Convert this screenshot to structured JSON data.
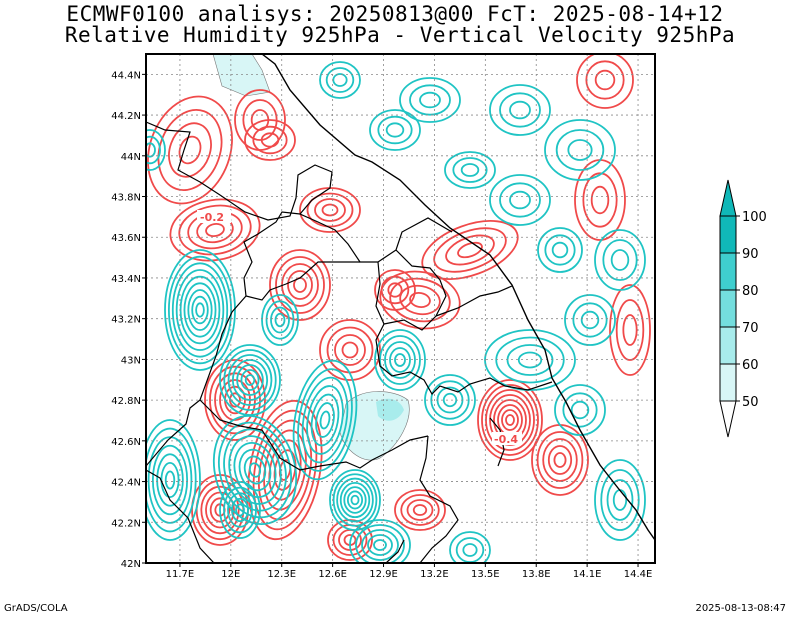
{
  "header": {
    "line1": "ECMWF0100 analisys: 20250813@00 FcT: 2025-08-14+12",
    "line2": "Relative Humidity 925hPa - Vertical Velocity 925hPa"
  },
  "map": {
    "lon_range": [
      11.5,
      14.5
    ],
    "lat_range": [
      42.0,
      44.5
    ],
    "lon_ticks": [
      "11.7E",
      "12E",
      "12.3E",
      "12.6E",
      "12.9E",
      "13.2E",
      "13.5E",
      "13.8E",
      "14.1E",
      "14.4E"
    ],
    "lat_ticks": [
      "42N",
      "42.2N",
      "42.4N",
      "42.6N",
      "42.8N",
      "43N",
      "43.2N",
      "43.4N",
      "43.6N",
      "43.8N",
      "44N",
      "44.2N",
      "44.4N"
    ],
    "contour_labels": [
      "-0.2",
      "-0.4"
    ],
    "colors": {
      "positive_contour": "#f04a4a",
      "negative_contour": "#1fc4c4",
      "border": "#000000",
      "grid": "#888888"
    }
  },
  "colorbar": {
    "labels": [
      "50",
      "60",
      "70",
      "80",
      "90",
      "100"
    ],
    "colors": [
      "#ffffff",
      "#d8f6f6",
      "#a8ecec",
      "#74dede",
      "#3fcece",
      "#10b8b8"
    ]
  },
  "footer": {
    "left": "GrADS/COLA",
    "right": "2025-08-13-08:47"
  }
}
